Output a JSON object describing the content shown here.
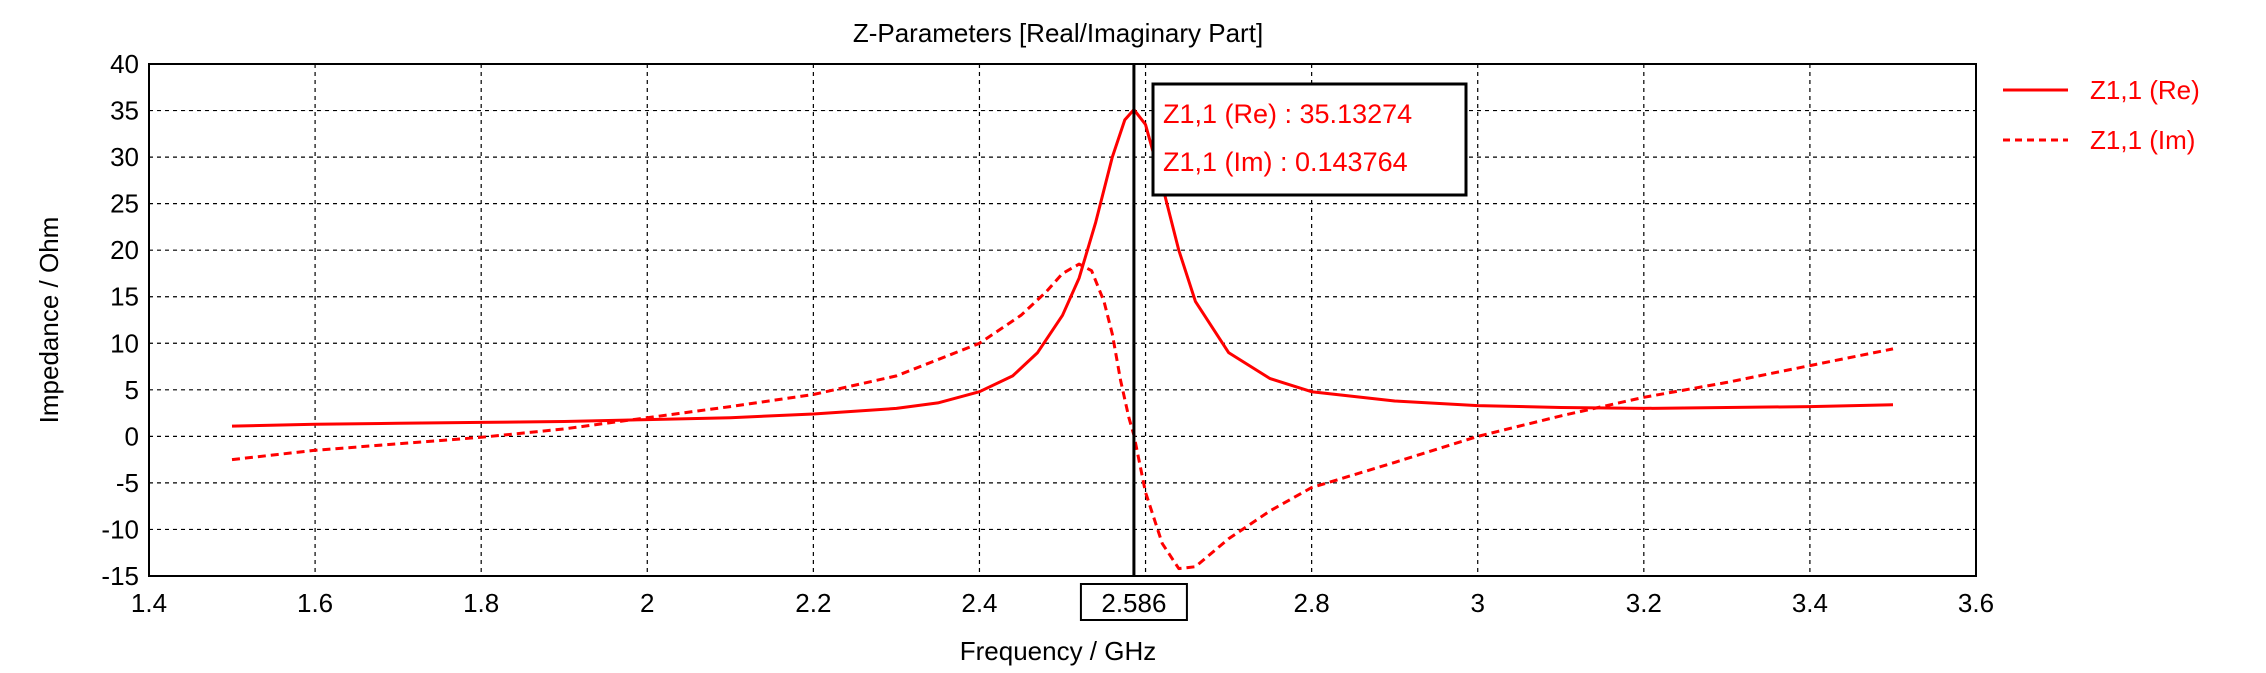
{
  "chart_data": {
    "type": "line",
    "title": "Z-Parameters [Real/Imaginary Part]",
    "xlabel": "Frequency / GHz",
    "ylabel": "Impedance / Ohm",
    "xlim": [
      1.4,
      3.6
    ],
    "ylim": [
      -15,
      40
    ],
    "xticks": [
      1.4,
      1.6,
      1.8,
      2,
      2.2,
      2.4,
      2.6,
      2.8,
      3,
      3.2,
      3.4,
      3.6
    ],
    "yticks": [
      -15,
      -10,
      -5,
      0,
      5,
      10,
      15,
      20,
      25,
      30,
      35,
      40
    ],
    "grid": true,
    "legend_position": "top-right",
    "marker": {
      "x": 2.586,
      "label": "2.586",
      "readouts": [
        "Z1,1 (Re) : 35.13274",
        "Z1,1 (Im) : 0.143764"
      ]
    },
    "series": [
      {
        "name": "Z1,1 (Re)",
        "style": "solid",
        "color": "#ff0000",
        "x": [
          1.5,
          1.6,
          1.7,
          1.8,
          1.9,
          2.0,
          2.1,
          2.2,
          2.3,
          2.35,
          2.4,
          2.44,
          2.47,
          2.5,
          2.52,
          2.54,
          2.56,
          2.575,
          2.586,
          2.6,
          2.62,
          2.64,
          2.66,
          2.7,
          2.75,
          2.8,
          2.9,
          3.0,
          3.1,
          3.2,
          3.3,
          3.4,
          3.5
        ],
        "y": [
          1.1,
          1.3,
          1.4,
          1.5,
          1.6,
          1.8,
          2.0,
          2.4,
          3.0,
          3.6,
          4.8,
          6.5,
          9.0,
          13.0,
          17.0,
          23.0,
          30.0,
          34.0,
          35.1,
          33.5,
          27.0,
          20.0,
          14.5,
          9.0,
          6.2,
          4.8,
          3.8,
          3.3,
          3.1,
          3.0,
          3.1,
          3.2,
          3.4
        ]
      },
      {
        "name": "Z1,1 (Im)",
        "style": "dashed",
        "color": "#ff0000",
        "x": [
          1.5,
          1.6,
          1.7,
          1.8,
          1.9,
          2.0,
          2.1,
          2.2,
          2.3,
          2.4,
          2.45,
          2.48,
          2.5,
          2.52,
          2.535,
          2.55,
          2.56,
          2.57,
          2.58,
          2.586,
          2.6,
          2.62,
          2.64,
          2.66,
          2.7,
          2.75,
          2.8,
          2.9,
          3.0,
          3.1,
          3.2,
          3.3,
          3.4,
          3.5
        ],
        "y": [
          -2.5,
          -1.5,
          -0.8,
          -0.1,
          0.8,
          2.0,
          3.2,
          4.5,
          6.5,
          10.0,
          13.0,
          15.5,
          17.5,
          18.5,
          17.8,
          14.5,
          11.0,
          6.0,
          2.0,
          0.14,
          -6.0,
          -11.5,
          -14.2,
          -14.0,
          -11.0,
          -8.0,
          -5.5,
          -2.8,
          0.0,
          2.2,
          4.2,
          5.8,
          7.6,
          9.4
        ]
      }
    ]
  }
}
